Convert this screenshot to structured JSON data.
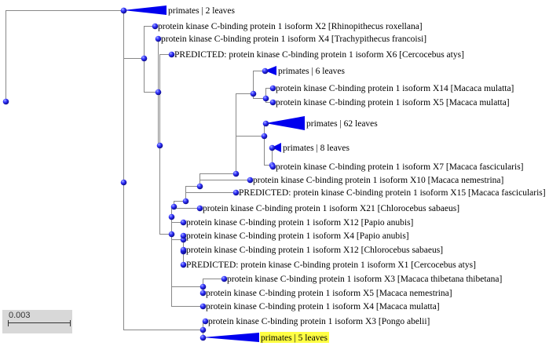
{
  "colors": {
    "node": "#3333ff",
    "collapsed": "#0000ee",
    "branch": "#888888",
    "highlight": "#ffff44"
  },
  "scale": {
    "label": "0.003"
  },
  "nodes": [
    {
      "id": "root",
      "parent": null
    },
    {
      "id": "n_left",
      "parent": "root"
    },
    {
      "id": "L_primates2",
      "parent": "n_left",
      "label": "primates | 2 leaves",
      "collapsed": true
    },
    {
      "id": "n1",
      "parent": "n_left"
    },
    {
      "id": "n_x2",
      "parent": "n1"
    },
    {
      "id": "L_x2",
      "parent": "n_x2",
      "label": "protein kinase C-binding protein 1 isoform X2 [Rhinopithecus roxellana]"
    },
    {
      "id": "n3",
      "parent": "n_x2"
    },
    {
      "id": "L_x4tf",
      "parent": "n3",
      "label": "protein kinase C-binding protein 1 isoform X4 [Trachypithecus francoisi]"
    },
    {
      "id": "n4",
      "parent": "n3"
    },
    {
      "id": "L_x6ca",
      "parent": "n4",
      "label": "PREDICTED: protein kinase C-binding protein 1 isoform X6 [Cercocebus atys]"
    },
    {
      "id": "n5",
      "parent": "n4"
    },
    {
      "id": "n6",
      "parent": "n5"
    },
    {
      "id": "n7",
      "parent": "n6"
    },
    {
      "id": "n8",
      "parent": "n7"
    },
    {
      "id": "n9",
      "parent": "n8"
    },
    {
      "id": "n10",
      "parent": "n9"
    },
    {
      "id": "n11",
      "parent": "n10"
    },
    {
      "id": "L_primates6",
      "parent": "n11",
      "label": "primates | 6 leaves",
      "collapsed": true
    },
    {
      "id": "n12",
      "parent": "n11"
    },
    {
      "id": "L_x14mm",
      "parent": "n12",
      "label": "protein kinase C-binding protein 1 isoform X14 [Macaca mulatta]"
    },
    {
      "id": "L_x5mm",
      "parent": "n12",
      "label": "protein kinase C-binding protein 1 isoform X5 [Macaca mulatta]"
    },
    {
      "id": "n13",
      "parent": "n10"
    },
    {
      "id": "L_primates62",
      "parent": "n13",
      "label": "primates | 62 leaves",
      "collapsed": true
    },
    {
      "id": "n14",
      "parent": "n13"
    },
    {
      "id": "L_primates8",
      "parent": "n14",
      "label": "primates | 8 leaves",
      "collapsed": true
    },
    {
      "id": "L_x7mf",
      "parent": "n14",
      "label": "protein kinase C-binding protein 1 isoform X7 [Macaca fascicularis]"
    },
    {
      "id": "L_x10mn",
      "parent": "n9",
      "label": "protein kinase C-binding protein 1 isoform X10 [Macaca nemestrina]"
    },
    {
      "id": "L_x15mf",
      "parent": "n8",
      "label": "PREDICTED: protein kinase C-binding protein 1 isoform X15 [Macaca fascicularis]"
    },
    {
      "id": "L_x21cs",
      "parent": "n7",
      "label": "protein kinase C-binding protein 1 isoform X21 [Chlorocebus sabaeus]"
    },
    {
      "id": "L_x12pa",
      "parent": "n6",
      "label": "protein kinase C-binding protein 1 isoform X12 [Papio anubis]"
    },
    {
      "id": "n15",
      "parent": "n5"
    },
    {
      "id": "L_x4pa",
      "parent": "n15",
      "label": "protein kinase C-binding protein 1 isoform X4 [Papio anubis]"
    },
    {
      "id": "n16",
      "parent": "n15"
    },
    {
      "id": "L_x12cs",
      "parent": "n16",
      "label": "protein kinase C-binding protein 1 isoform X12 [Chlorocebus sabaeus]"
    },
    {
      "id": "L_x1ca",
      "parent": "n16",
      "label": "PREDICTED: protein kinase C-binding protein 1 isoform X1 [Cercocebus atys]"
    },
    {
      "id": "n17",
      "parent": "n5"
    },
    {
      "id": "L_x3mt",
      "parent": "n17",
      "label": "protein kinase C-binding protein 1 isoform X3 [Macaca thibetana thibetana]"
    },
    {
      "id": "L_x5mn",
      "parent": "n17",
      "label": "protein kinase C-binding protein 1 isoform X5 [Macaca nemestrina]"
    },
    {
      "id": "L_x4mm",
      "parent": "n5",
      "label": "protein kinase C-binding protein 1 isoform X4 [Macaca mulatta]"
    },
    {
      "id": "n18",
      "parent": "n1"
    },
    {
      "id": "L_x3pa",
      "parent": "n18",
      "label": "protein kinase C-binding protein 1 isoform X3 [Pongo abelii]"
    },
    {
      "id": "L_primates5",
      "parent": "n18",
      "label": "primates | 5 leaves",
      "collapsed": true,
      "highlighted": true
    }
  ]
}
